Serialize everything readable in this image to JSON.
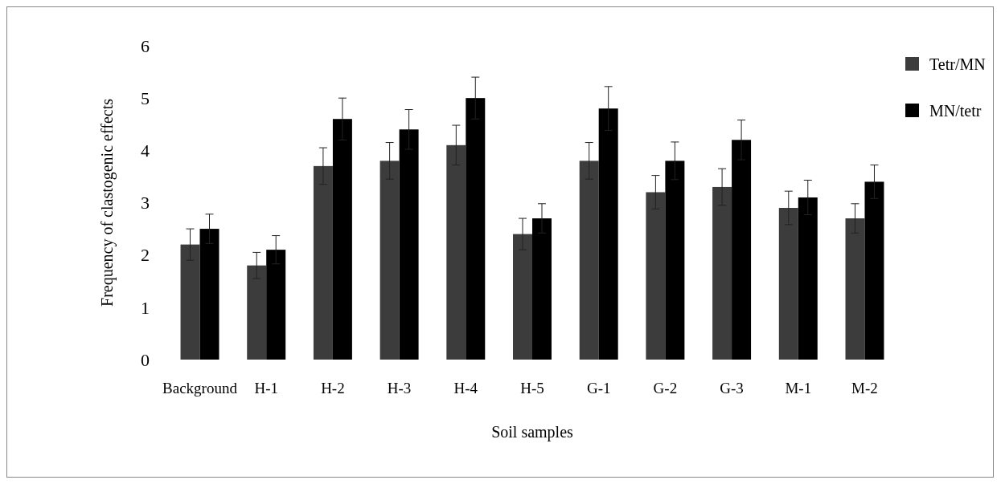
{
  "chart_data": {
    "type": "bar",
    "xlabel": "Soil samples",
    "ylabel": "Frequency of clastogenic effects",
    "categories": [
      "Background",
      "H-1",
      "H-2",
      "H-3",
      "H-4",
      "H-5",
      "G-1",
      "G-2",
      "G-3",
      "M-1",
      "M-2"
    ],
    "series": [
      {
        "name": "Tetr/MN",
        "color": "#3c3c3c",
        "values": [
          2.2,
          1.8,
          3.7,
          3.8,
          4.1,
          2.4,
          3.8,
          3.2,
          3.3,
          2.9,
          2.7
        ],
        "errors": [
          0.3,
          0.25,
          0.35,
          0.35,
          0.38,
          0.3,
          0.35,
          0.32,
          0.35,
          0.32,
          0.28
        ]
      },
      {
        "name": "MN/tetr",
        "color": "#000000",
        "values": [
          2.5,
          2.1,
          4.6,
          4.4,
          5.0,
          2.7,
          4.8,
          3.8,
          4.2,
          3.1,
          3.4
        ],
        "errors": [
          0.28,
          0.27,
          0.4,
          0.38,
          0.4,
          0.28,
          0.42,
          0.36,
          0.38,
          0.33,
          0.32
        ]
      }
    ],
    "ylim": [
      0,
      6
    ],
    "yticks": [
      0,
      1,
      2,
      3,
      4,
      5,
      6
    ],
    "legend": "top right"
  }
}
